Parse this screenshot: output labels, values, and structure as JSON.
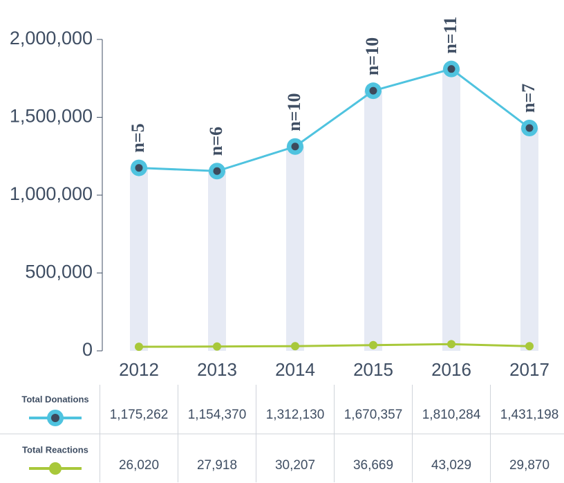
{
  "chart_data": {
    "type": "line",
    "categories": [
      "2012",
      "2013",
      "2014",
      "2015",
      "2016",
      "2017"
    ],
    "series": [
      {
        "name": "Total Donations",
        "color": "#4fc3df",
        "marker_color": "#3d4a5c",
        "values": [
          1175262,
          1154370,
          1312130,
          1670357,
          1810284,
          1431198
        ],
        "value_labels": [
          "1,175,262",
          "1,154,370",
          "1,312,130",
          "1,670,357",
          "1,810,284",
          "1,431,198"
        ]
      },
      {
        "name": "Total Reactions",
        "color": "#a8c83a",
        "values": [
          26020,
          27918,
          30207,
          36669,
          43029,
          29870
        ],
        "value_labels": [
          "26,020",
          "27,918",
          "30,207",
          "36,669",
          "43,029",
          "29,870"
        ]
      }
    ],
    "annotations": [
      "n=5",
      "n=6",
      "n=10",
      "n=10",
      "n=11",
      "n=7"
    ],
    "ylim": [
      0,
      2000000
    ],
    "yticks": [
      0,
      {
        "value": 500000,
        "label": "500,000"
      },
      {
        "value": 1000000,
        "label": "1,000,000"
      },
      {
        "value": 1500000,
        "label": "1,500,000"
      },
      {
        "value": 2000000,
        "label": "2,000,000"
      }
    ]
  }
}
